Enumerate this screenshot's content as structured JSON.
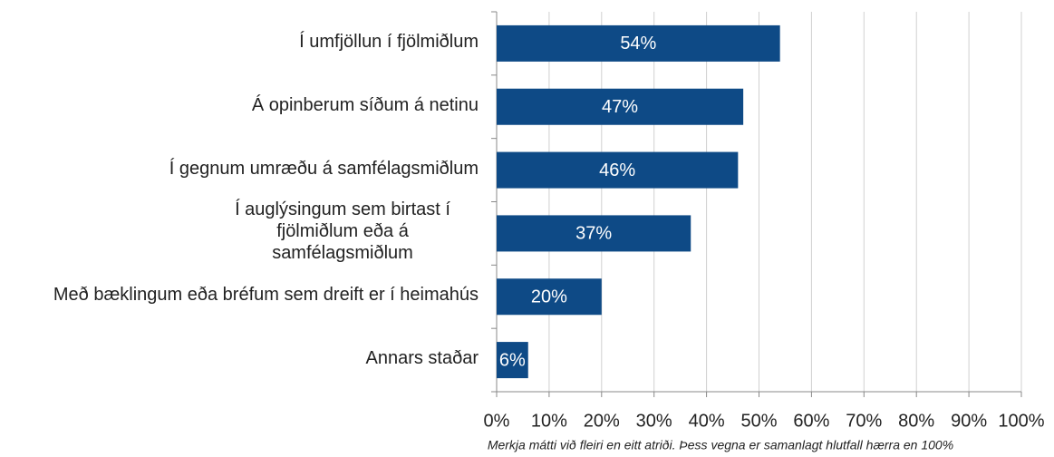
{
  "chart_data": {
    "type": "bar",
    "orientation": "horizontal",
    "categories": [
      "Í umfjöllun í fjölmiðlum",
      "Á opinberum síðum á netinu",
      "Í gegnum umræðu á samfélagsmiðlum",
      "Í auglýsingum sem birtast í fjölmiðlum eða á samfélagsmiðlum",
      "Með bæklingum eða bréfum sem dreift er í heimahús",
      "Annars staðar"
    ],
    "values": [
      54,
      47,
      46,
      37,
      20,
      6
    ],
    "value_labels": [
      "54%",
      "47%",
      "46%",
      "37%",
      "20%",
      "6%"
    ],
    "color": "#0e4a86",
    "xlim": [
      0,
      100
    ],
    "xticks": [
      {
        "value": 0,
        "label": "0%"
      },
      {
        "value": 10,
        "label": "10%"
      },
      {
        "value": 20,
        "label": "20%"
      },
      {
        "value": 30,
        "label": "30%"
      },
      {
        "value": 40,
        "label": "40%"
      },
      {
        "value": 50,
        "label": "50%"
      },
      {
        "value": 60,
        "label": "60%"
      },
      {
        "value": 70,
        "label": "70%"
      },
      {
        "value": 80,
        "label": "80%"
      },
      {
        "value": 90,
        "label": "90%"
      },
      {
        "value": 100,
        "label": "100%"
      }
    ],
    "grid": true,
    "footnote": "Merkja mátti við fleiri en eitt atriði. Þess vegna er samanlagt hlutfall hærra en 100%"
  }
}
